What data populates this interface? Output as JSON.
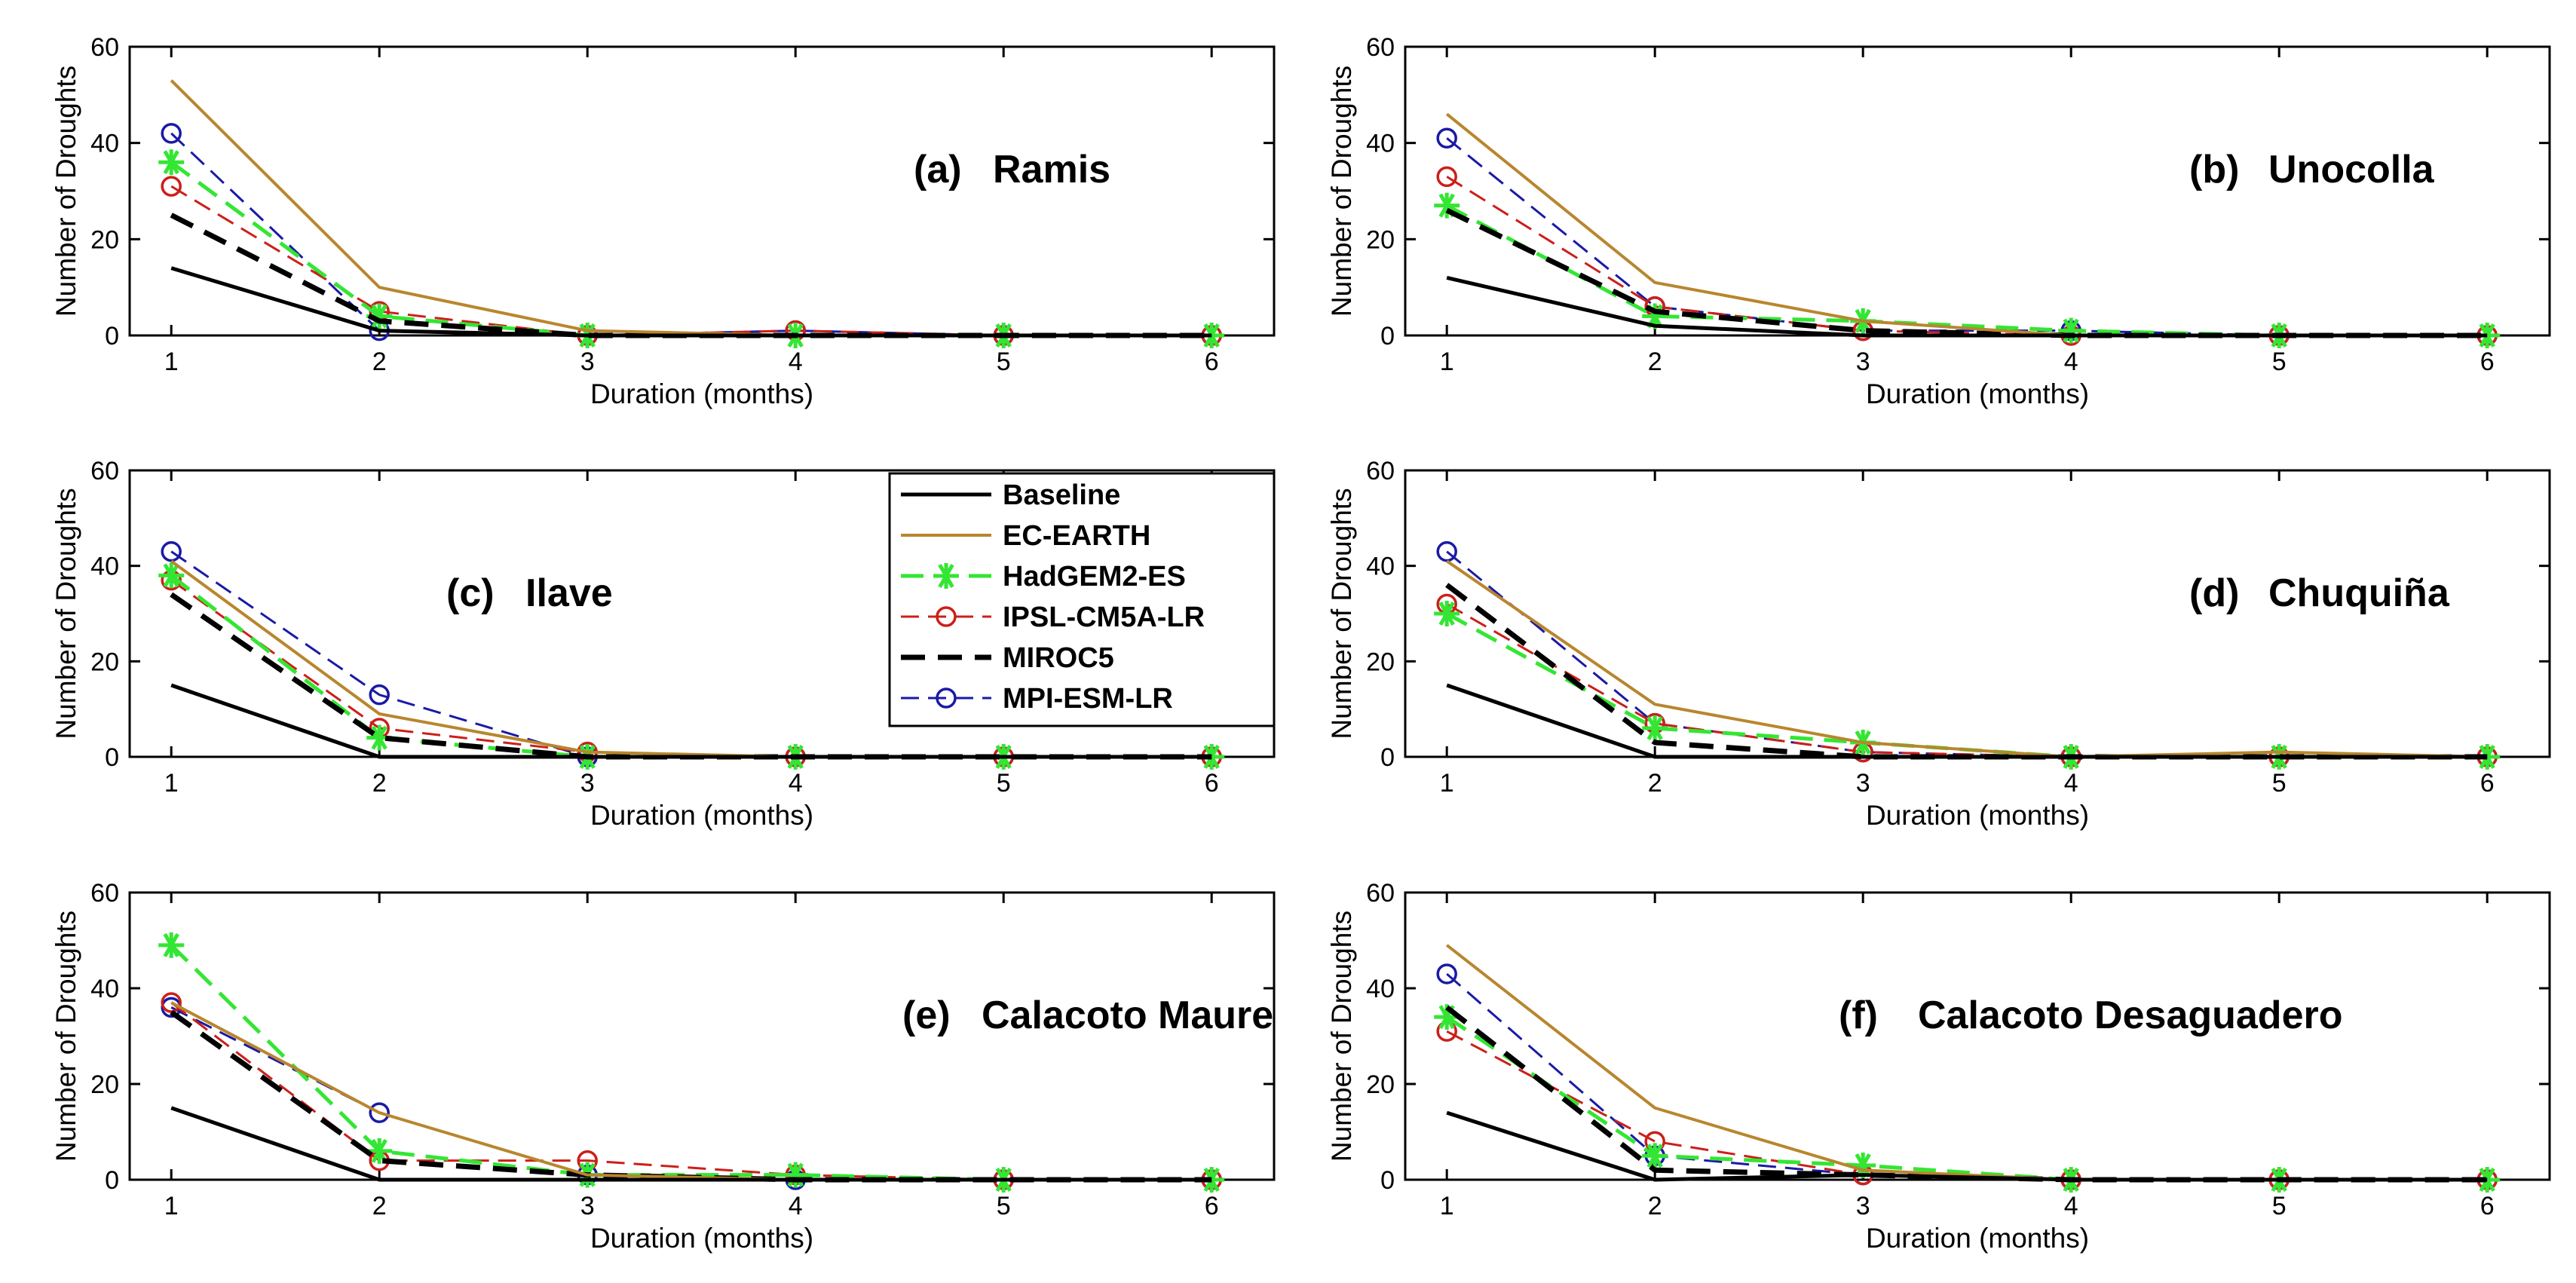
{
  "chart_data": [
    {
      "type": "line",
      "panel_label": "(a)",
      "station": "Ramis",
      "xlabel": "Duration (months)",
      "ylabel": "Number of Droughts",
      "x": [
        1,
        2,
        3,
        4,
        5,
        6
      ],
      "xlim": [
        0.8,
        6.3
      ],
      "ylim": [
        0,
        60
      ],
      "xticks": [
        "1",
        "2",
        "3",
        "4",
        "5",
        "6"
      ],
      "yticks": [
        "0",
        "20",
        "40",
        "60"
      ],
      "series": [
        {
          "name": "Baseline",
          "values": [
            14,
            1,
            0,
            0,
            0,
            0
          ]
        },
        {
          "name": "EC-EARTH",
          "values": [
            53,
            10,
            1,
            0,
            0,
            0
          ]
        },
        {
          "name": "HadGEM2-ES",
          "values": [
            36,
            4,
            0,
            0,
            0,
            0
          ]
        },
        {
          "name": "IPSL-CM5A-LR",
          "values": [
            31,
            5,
            0,
            1,
            0,
            0
          ]
        },
        {
          "name": "MIROC5",
          "values": [
            25,
            3,
            0,
            0,
            0,
            0
          ]
        },
        {
          "name": "MPI-ESM-LR",
          "values": [
            42,
            1,
            0,
            1,
            0,
            0
          ]
        }
      ]
    },
    {
      "type": "line",
      "panel_label": "(b)",
      "station": "Unocolla",
      "xlabel": "Duration (months)",
      "ylabel": "Number of Droughts",
      "x": [
        1,
        2,
        3,
        4,
        5,
        6
      ],
      "xlim": [
        0.8,
        6.3
      ],
      "ylim": [
        0,
        60
      ],
      "xticks": [
        "1",
        "2",
        "3",
        "4",
        "5",
        "6"
      ],
      "yticks": [
        "0",
        "20",
        "40",
        "60"
      ],
      "series": [
        {
          "name": "Baseline",
          "values": [
            12,
            2,
            0,
            0,
            0,
            0
          ]
        },
        {
          "name": "EC-EARTH",
          "values": [
            46,
            11,
            3,
            0,
            0,
            0
          ]
        },
        {
          "name": "HadGEM2-ES",
          "values": [
            27,
            4,
            3,
            1,
            0,
            0
          ]
        },
        {
          "name": "IPSL-CM5A-LR",
          "values": [
            33,
            6,
            1,
            0,
            0,
            0
          ]
        },
        {
          "name": "MIROC5",
          "values": [
            26,
            5,
            1,
            0,
            0,
            0
          ]
        },
        {
          "name": "MPI-ESM-LR",
          "values": [
            41,
            6,
            1,
            1,
            0,
            0
          ]
        }
      ]
    },
    {
      "type": "line",
      "panel_label": "(c)",
      "station": "Ilave",
      "xlabel": "Duration (months)",
      "ylabel": "Number of Droughts",
      "x": [
        1,
        2,
        3,
        4,
        5,
        6
      ],
      "xlim": [
        0.8,
        6.3
      ],
      "ylim": [
        0,
        60
      ],
      "xticks": [
        "1",
        "2",
        "3",
        "4",
        "5",
        "6"
      ],
      "yticks": [
        "0",
        "20",
        "40",
        "60"
      ],
      "series": [
        {
          "name": "Baseline",
          "values": [
            15,
            0,
            0,
            0,
            0,
            0
          ]
        },
        {
          "name": "EC-EARTH",
          "values": [
            41,
            9,
            1,
            0,
            0,
            0
          ]
        },
        {
          "name": "HadGEM2-ES",
          "values": [
            38,
            4,
            0,
            0,
            0,
            0
          ]
        },
        {
          "name": "IPSL-CM5A-LR",
          "values": [
            37,
            6,
            1,
            0,
            0,
            0
          ]
        },
        {
          "name": "MIROC5",
          "values": [
            34,
            4,
            0,
            0,
            0,
            0
          ]
        },
        {
          "name": "MPI-ESM-LR",
          "values": [
            43,
            13,
            0,
            0,
            0,
            0
          ]
        }
      ]
    },
    {
      "type": "line",
      "panel_label": "(d)",
      "station": "Chuquiña",
      "xlabel": "Duration (months)",
      "ylabel": "Number of Droughts",
      "x": [
        1,
        2,
        3,
        4,
        5,
        6
      ],
      "xlim": [
        0.8,
        6.3
      ],
      "ylim": [
        0,
        60
      ],
      "xticks": [
        "1",
        "2",
        "3",
        "4",
        "5",
        "6"
      ],
      "yticks": [
        "0",
        "20",
        "40",
        "60"
      ],
      "series": [
        {
          "name": "Baseline",
          "values": [
            15,
            0,
            0,
            0,
            0,
            0
          ]
        },
        {
          "name": "EC-EARTH",
          "values": [
            41,
            11,
            3,
            0,
            1,
            0
          ]
        },
        {
          "name": "HadGEM2-ES",
          "values": [
            30,
            6,
            3,
            0,
            0,
            0
          ]
        },
        {
          "name": "IPSL-CM5A-LR",
          "values": [
            32,
            7,
            1,
            0,
            0,
            0
          ]
        },
        {
          "name": "MIROC5",
          "values": [
            36,
            3,
            0,
            0,
            0,
            0
          ]
        },
        {
          "name": "MPI-ESM-LR",
          "values": [
            43,
            7,
            1,
            0,
            0,
            0
          ]
        }
      ]
    },
    {
      "type": "line",
      "panel_label": "(e)",
      "station": "Calacoto Maure",
      "xlabel": "Duration (months)",
      "ylabel": "Number of Droughts",
      "x": [
        1,
        2,
        3,
        4,
        5,
        6
      ],
      "xlim": [
        0.8,
        6.3
      ],
      "ylim": [
        0,
        60
      ],
      "xticks": [
        "1",
        "2",
        "3",
        "4",
        "5",
        "6"
      ],
      "yticks": [
        "0",
        "20",
        "40",
        "60"
      ],
      "series": [
        {
          "name": "Baseline",
          "values": [
            15,
            0,
            0,
            0,
            0,
            0
          ]
        },
        {
          "name": "EC-EARTH",
          "values": [
            37,
            14,
            1,
            0,
            0,
            0
          ]
        },
        {
          "name": "HadGEM2-ES",
          "values": [
            49,
            6,
            1,
            1,
            0,
            0
          ]
        },
        {
          "name": "IPSL-CM5A-LR",
          "values": [
            37,
            4,
            4,
            1,
            0,
            0
          ]
        },
        {
          "name": "MIROC5",
          "values": [
            35,
            4,
            1,
            0,
            0,
            0
          ]
        },
        {
          "name": "MPI-ESM-LR",
          "values": [
            36,
            14,
            1,
            0,
            0,
            0
          ]
        }
      ]
    },
    {
      "type": "line",
      "panel_label": "(f)",
      "station": "Calacoto Desaguadero",
      "xlabel": "Duration (months)",
      "ylabel": "Number of Droughts",
      "x": [
        1,
        2,
        3,
        4,
        5,
        6
      ],
      "xlim": [
        0.8,
        6.3
      ],
      "ylim": [
        0,
        60
      ],
      "xticks": [
        "1",
        "2",
        "3",
        "4",
        "5",
        "6"
      ],
      "yticks": [
        "0",
        "20",
        "40",
        "60"
      ],
      "series": [
        {
          "name": "Baseline",
          "values": [
            14,
            0,
            1,
            0,
            0,
            0
          ]
        },
        {
          "name": "EC-EARTH",
          "values": [
            49,
            15,
            2,
            0,
            0,
            0
          ]
        },
        {
          "name": "HadGEM2-ES",
          "values": [
            34,
            5,
            3,
            0,
            0,
            0
          ]
        },
        {
          "name": "IPSL-CM5A-LR",
          "values": [
            31,
            8,
            1,
            0,
            0,
            0
          ]
        },
        {
          "name": "MIROC5",
          "values": [
            36,
            2,
            1,
            0,
            0,
            0
          ]
        },
        {
          "name": "MPI-ESM-LR",
          "values": [
            43,
            5,
            1,
            0,
            0,
            0
          ]
        }
      ]
    }
  ],
  "legend": {
    "placement": "center, over panel (c)",
    "entries": [
      {
        "label": "Baseline",
        "color": "#000000",
        "dash": "solid",
        "marker": "none"
      },
      {
        "label": "EC-EARTH",
        "color": "#b8862e",
        "dash": "solid",
        "marker": "none"
      },
      {
        "label": "HadGEM2-ES",
        "color": "#33e633",
        "dash": "dashed",
        "marker": "asterisk"
      },
      {
        "label": "IPSL-CM5A-LR",
        "color": "#cc1f1a",
        "dash": "dashed",
        "marker": "circle"
      },
      {
        "label": "MIROC5",
        "color": "#000000",
        "dash": "dashed",
        "marker": "none"
      },
      {
        "label": "MPI-ESM-LR",
        "color": "#1a1aa6",
        "dash": "dashed",
        "marker": "circle"
      }
    ]
  }
}
